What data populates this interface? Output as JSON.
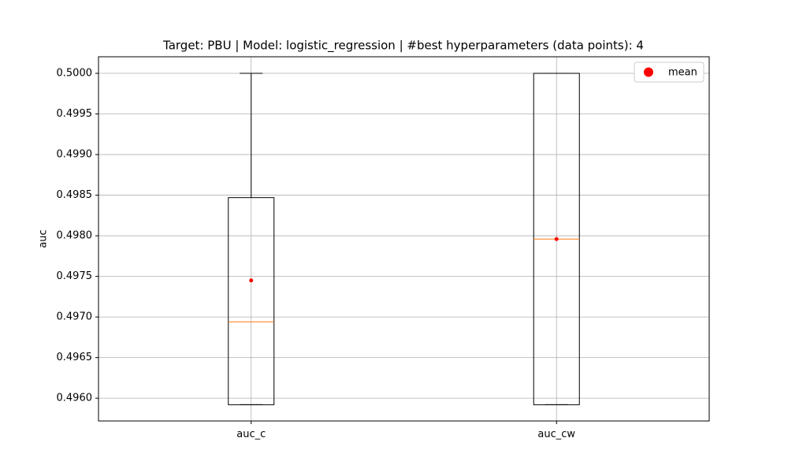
{
  "chart_data": {
    "type": "box",
    "title": "Target: PBU | Model: logistic_regression | #best hyperparameters (data points): 4",
    "y_label": "auc",
    "categories": [
      "auc_c",
      "auc_cw"
    ],
    "boxes": [
      {
        "whislo": 0.49592,
        "q1": 0.49592,
        "med": 0.49694,
        "q3": 0.49847,
        "whishi": 0.5,
        "mean": 0.49745
      },
      {
        "whislo": 0.49592,
        "q1": 0.49592,
        "med": 0.49796,
        "q3": 0.5,
        "whishi": 0.5,
        "mean": 0.49796
      }
    ],
    "box_color": "#000000",
    "median_color": "#ff7f0e",
    "mean_name": "mean",
    "mean_color": "#ff0000",
    "ylim": [
      0.49572,
      0.500204
    ],
    "yticks": [
      {
        "value": 0.496,
        "label": "0.4960"
      },
      0.4965,
      {
        "value": 0.497,
        "label": "0.4970"
      },
      0.4975,
      {
        "value": 0.498,
        "label": "0.4980"
      },
      0.4985,
      {
        "value": 0.499,
        "label": "0.4990"
      },
      0.4995,
      {
        "value": 0.5,
        "label": "0.5000"
      }
    ],
    "grid": true,
    "legend": "upper right"
  }
}
